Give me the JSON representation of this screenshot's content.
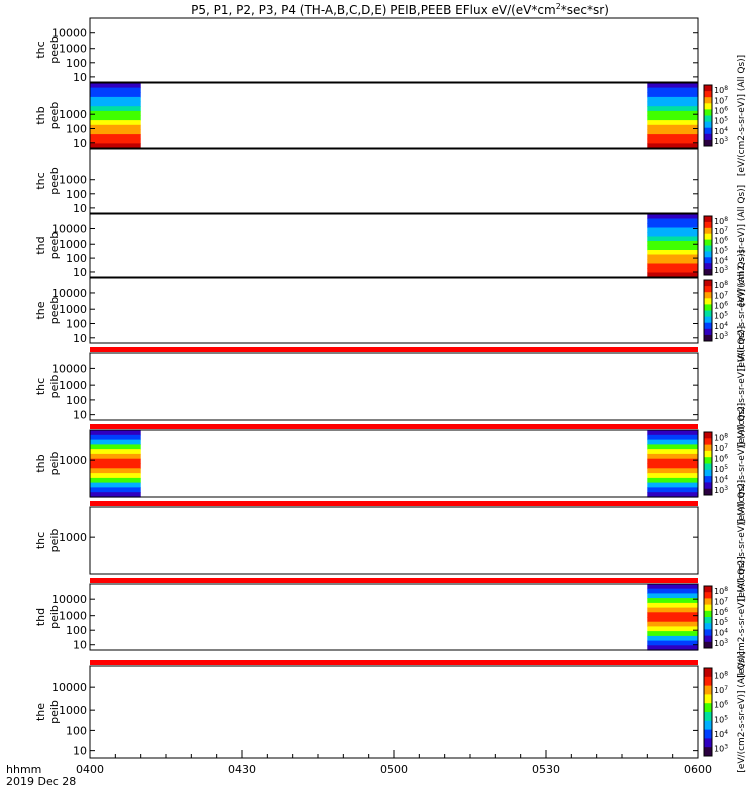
{
  "chart_data": {
    "type": "heatmap",
    "title": "P5, P1, P2, P3, P4 (TH-A,B,C,D,E) PEIB,PEEB EFlux eV/(eV*cm",
    "title_sup": "2",
    "title_tail": "*sec*sr)",
    "x_axis": {
      "ticks": [
        "0400",
        "0430",
        "0500",
        "0530",
        "0600"
      ],
      "tick_minutes": [
        0,
        30,
        60,
        90,
        120
      ],
      "range_minutes": [
        0,
        120
      ],
      "minor_interval_minutes": 5,
      "corner_label_1": "hhmm",
      "corner_label_2": "2019 Dec 28"
    },
    "energy_ticks": [
      "10",
      "100",
      "1000",
      "10000"
    ],
    "colorbar_ticks": [
      "10",
      "10",
      "10",
      "10",
      "10",
      "10"
    ],
    "colorbar_exponents": [
      "3",
      "4",
      "5",
      "6",
      "7",
      "8"
    ],
    "colorbar_label_suffix": "(All Qs)]",
    "panels": [
      {
        "probe": "thc",
        "product": "peeb",
        "has_colorbar": false,
        "energy_tick_labels": [
          "10",
          "100",
          "1000",
          "10000"
        ],
        "colorbar_label": "",
        "data_blocks": []
      },
      {
        "probe": "thb",
        "product": "peeb",
        "has_colorbar": true,
        "energy_tick_labels": [
          "10",
          "100",
          "1000"
        ],
        "colorbar_label": "[eV/(cm2-s-sr-eV)] (All Qs)]",
        "data_blocks": [
          {
            "start_min": 0,
            "end_min": 10
          },
          {
            "start_min": 110,
            "end_min": 120
          }
        ]
      },
      {
        "probe": "thc",
        "product": "peeb",
        "has_colorbar": false,
        "energy_tick_labels": [
          "10",
          "100",
          "1000"
        ],
        "colorbar_label": "",
        "data_blocks": []
      },
      {
        "probe": "thd",
        "product": "peeb",
        "has_colorbar": true,
        "energy_tick_labels": [
          "10",
          "100",
          "1000",
          "10000"
        ],
        "colorbar_label": "[eV/(cm2-s-sr-eV)] (All Qs)]",
        "data_blocks": [
          {
            "start_min": 110,
            "end_min": 120
          }
        ]
      },
      {
        "probe": "the",
        "product": "peeb",
        "has_colorbar": true,
        "energy_tick_labels": [
          "10",
          "100",
          "1000",
          "10000"
        ],
        "colorbar_label": "[eV/(cm2-s-sr-eV)] (All Qs)]",
        "data_blocks": []
      },
      {
        "probe": "thc",
        "product": "peib",
        "has_colorbar": false,
        "energy_tick_labels": [
          "10",
          "100",
          "1000",
          "10000"
        ],
        "colorbar_label": "[eV/(cm2-s-sr-eV)] (All Qs)]",
        "data_blocks": []
      },
      {
        "probe": "thb",
        "product": "peib",
        "has_colorbar": true,
        "energy_tick_labels": [
          "1000"
        ],
        "colorbar_label": "[eV/(cm2-s-sr-eV)] (All Qs)]",
        "data_blocks": [
          {
            "start_min": 0,
            "end_min": 10
          },
          {
            "start_min": 110,
            "end_min": 120
          }
        ]
      },
      {
        "probe": "thc",
        "product": "peib",
        "has_colorbar": false,
        "energy_tick_labels": [
          "1000"
        ],
        "colorbar_label": "[eV/(cm2-s-sr-eV)] (All Qs)]",
        "data_blocks": []
      },
      {
        "probe": "thd",
        "product": "peib",
        "has_colorbar": true,
        "energy_tick_labels": [
          "10",
          "100",
          "1000",
          "10000"
        ],
        "colorbar_label": "[eV/(cm2-s-sr-eV)] (All Qs)]",
        "data_blocks": [
          {
            "start_min": 110,
            "end_min": 120
          }
        ]
      },
      {
        "probe": "the",
        "product": "peib",
        "has_colorbar": true,
        "energy_tick_labels": [
          "10",
          "100",
          "1000",
          "10000"
        ],
        "colorbar_label": "[eV/(cm2-s-sr-eV)] (All Qs)]",
        "data_blocks": []
      }
    ],
    "colors": {
      "axis": "#000000",
      "separator_bar": "#ff0000",
      "palette": [
        "#2a0040",
        "#3000c0",
        "#0040ff",
        "#00b0ff",
        "#00e0a0",
        "#40ff00",
        "#ffff00",
        "#ffa000",
        "#ff2000",
        "#c00000"
      ]
    }
  }
}
